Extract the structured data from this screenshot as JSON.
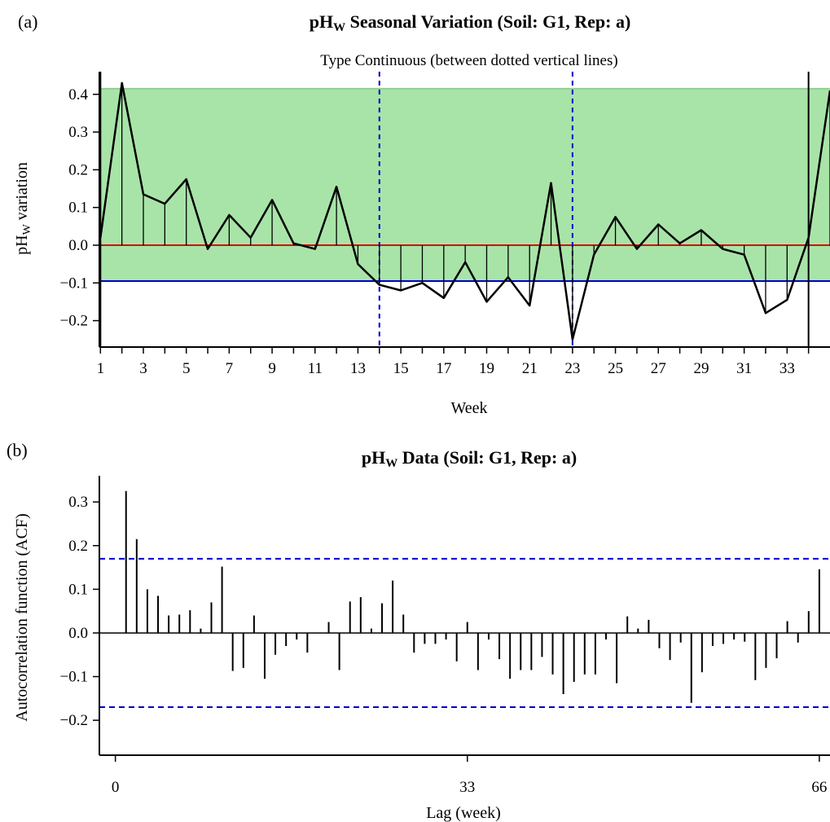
{
  "panel_a": {
    "label": "(a)",
    "title_prefix": "pH",
    "title_sub": "W",
    "title_rest": " Seasonal Variation (Soil: G1, Rep: a)",
    "subtitle": "Type Continuous (between dotted vertical lines)",
    "xlabel": "Week",
    "ylabel_prefix": "pH",
    "ylabel_sub": "W",
    "ylabel_rest": " variation"
  },
  "panel_b": {
    "label": "(b)",
    "title_prefix": "pH",
    "title_sub": "W",
    "title_rest": " Data (Soil: G1, Rep: a)",
    "xlabel": "Lag (week)",
    "ylabel": "Autocorrelation function (ACF)"
  },
  "chart_data": [
    {
      "type": "line",
      "title": "pHW Seasonal Variation (Soil: G1, Rep: a)",
      "subtitle": "Type Continuous (between dotted vertical lines)",
      "xlabel": "Week",
      "ylabel": "pHW variation",
      "xlim": [
        0.95,
        35
      ],
      "ylim": [
        -0.27,
        0.46
      ],
      "x_ticks": [
        1,
        2,
        3,
        4,
        5,
        6,
        7,
        8,
        9,
        10,
        11,
        12,
        13,
        14,
        15,
        16,
        17,
        18,
        19,
        20,
        21,
        22,
        23,
        24,
        25,
        26,
        27,
        28,
        29,
        30,
        31,
        32,
        33,
        34
      ],
      "x_tick_labels": [
        "1",
        "",
        "3",
        "",
        "5",
        "",
        "7",
        "",
        "9",
        "",
        "11",
        "",
        "13",
        "",
        "15",
        "",
        "17",
        "",
        "19",
        "",
        "21",
        "",
        "23",
        "",
        "25",
        "",
        "27",
        "",
        "29",
        "",
        "31",
        "",
        "33",
        ""
      ],
      "y_ticks": [
        -0.2,
        -0.1,
        0.0,
        0.1,
        0.2,
        0.3,
        0.4
      ],
      "y_tick_labels": [
        "−0.2",
        "−0.1",
        "0.0",
        "0.1",
        "0.2",
        "0.3",
        "0.4"
      ],
      "x": [
        1,
        2,
        3,
        4,
        5,
        6,
        7,
        8,
        9,
        10,
        11,
        12,
        13,
        14,
        15,
        16,
        17,
        18,
        19,
        20,
        21,
        22,
        23,
        24,
        25,
        26,
        27,
        28,
        29,
        30,
        31,
        32,
        33,
        34,
        35
      ],
      "values": [
        0.02,
        0.43,
        0.135,
        0.11,
        0.175,
        -0.01,
        0.08,
        0.02,
        0.12,
        0.005,
        -0.01,
        0.155,
        -0.05,
        -0.105,
        -0.12,
        -0.1,
        -0.14,
        -0.045,
        -0.15,
        -0.085,
        -0.16,
        0.165,
        -0.25,
        -0.025,
        0.075,
        -0.01,
        0.055,
        0.005,
        0.04,
        -0.01,
        -0.025,
        -0.18,
        -0.145,
        0.02,
        0.41
      ],
      "band": [
        -0.095,
        0.415
      ],
      "reference_lines": {
        "zero": 0.0,
        "lower": -0.095,
        "upper": 0.415
      },
      "dotted_vertical_lines": [
        14,
        23
      ],
      "solid_vertical_lines": [
        1,
        34
      ],
      "colors": {
        "band": "#a8e4a8",
        "zero_line": "#dd0000",
        "lower_line": "#0000cc",
        "dotted": "#0000cc",
        "series": "#000000"
      }
    },
    {
      "type": "bar",
      "title": "pHW Data (Soil: G1, Rep: a)",
      "xlabel": "Lag (week)",
      "ylabel": "Autocorrelation function (ACF)",
      "xlim": [
        -1.5,
        67
      ],
      "ylim": [
        -0.28,
        0.36
      ],
      "x_ticks": [
        0,
        33,
        66
      ],
      "x_tick_labels": [
        "0",
        "33",
        "66"
      ],
      "y_ticks": [
        -0.2,
        -0.1,
        0.0,
        0.1,
        0.2,
        0.3
      ],
      "y_tick_labels": [
        "−0.2",
        "−0.1",
        "0.0",
        "0.1",
        "0.2",
        "0.3"
      ],
      "lags": [
        1,
        2,
        3,
        4,
        5,
        6,
        7,
        8,
        9,
        10,
        11,
        12,
        13,
        14,
        15,
        16,
        17,
        18,
        19,
        20,
        21,
        22,
        23,
        24,
        25,
        26,
        27,
        28,
        29,
        30,
        31,
        32,
        33,
        34,
        35,
        36,
        37,
        38,
        39,
        40,
        41,
        42,
        43,
        44,
        45,
        46,
        47,
        48,
        49,
        50,
        51,
        52,
        53,
        54,
        55,
        56,
        57,
        58,
        59,
        60,
        61,
        62,
        63,
        64,
        65,
        66
      ],
      "values": [
        0.325,
        0.215,
        0.1,
        0.085,
        0.04,
        0.042,
        0.052,
        0.01,
        0.07,
        0.152,
        -0.087,
        -0.08,
        0.04,
        -0.105,
        -0.05,
        -0.03,
        -0.015,
        -0.045,
        0.0,
        0.025,
        -0.085,
        0.072,
        0.082,
        0.01,
        0.068,
        0.12,
        0.042,
        -0.045,
        -0.025,
        -0.025,
        -0.015,
        -0.065,
        0.025,
        -0.085,
        -0.015,
        -0.06,
        -0.105,
        -0.085,
        -0.085,
        -0.055,
        -0.095,
        -0.14,
        -0.112,
        -0.095,
        -0.095,
        -0.015,
        -0.115,
        0.038,
        0.01,
        0.03,
        -0.035,
        -0.062,
        -0.022,
        -0.16,
        -0.09,
        -0.03,
        -0.025,
        -0.015,
        -0.02,
        -0.108,
        -0.08,
        -0.058,
        0.027,
        -0.022,
        0.05,
        0.146
      ],
      "confidence_band": [
        -0.17,
        0.17
      ],
      "colors": {
        "bars": "#000000",
        "confidence": "#0000cc"
      }
    }
  ]
}
